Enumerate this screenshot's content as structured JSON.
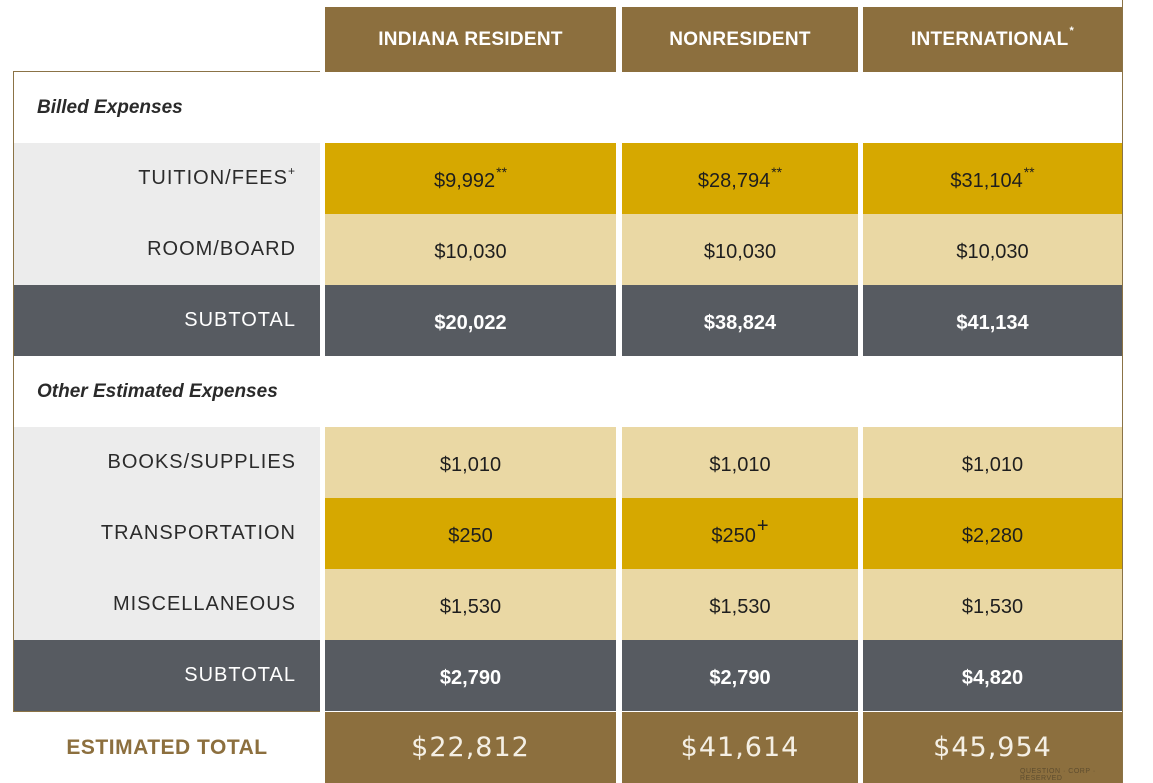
{
  "headers": {
    "indiana": "INDIANA RESIDENT",
    "nonresident": "NONRESIDENT",
    "international": "INTERNATIONAL",
    "international_mark": "*"
  },
  "sections": {
    "billed": "Billed Expenses",
    "other": "Other Estimated Expenses"
  },
  "rows": {
    "tuition": {
      "label": "TUITION/FEES",
      "label_mark": "+",
      "indiana": "$9,992",
      "indiana_mark": "**",
      "nonresident": "$28,794",
      "nonresident_mark": "**",
      "international": "$31,104",
      "international_mark": "**"
    },
    "room": {
      "label": "ROOM/BOARD",
      "indiana": "$10,030",
      "nonresident": "$10,030",
      "international": "$10,030"
    },
    "subtotal1": {
      "label": "SUBTOTAL",
      "indiana": "$20,022",
      "nonresident": "$38,824",
      "international": "$41,134"
    },
    "books": {
      "label": "BOOKS/SUPPLIES",
      "indiana": "$1,010",
      "nonresident": "$1,010",
      "international": "$1,010"
    },
    "transport": {
      "label": "TRANSPORTATION",
      "indiana": "$250",
      "nonresident": "$250",
      "nonresident_mark": "+",
      "international": "$2,280"
    },
    "misc": {
      "label": "MISCELLANEOUS",
      "indiana": "$1,530",
      "nonresident": "$1,530",
      "international": "$1,530"
    },
    "subtotal2": {
      "label": "SUBTOTAL",
      "indiana": "$2,790",
      "nonresident": "$2,790",
      "international": "$4,820"
    }
  },
  "total": {
    "label": "ESTIMATED TOTAL",
    "indiana": "$22,812",
    "nonresident": "$41,614",
    "international": "$45,954"
  },
  "watermark": "QUESTION · CORP · RESERVED",
  "colors": {
    "header_brown": "#8c6f3e",
    "gold": "#d6a800",
    "light_gold": "#ead8a4",
    "slate": "#575b61",
    "label_gray": "#ececec"
  }
}
